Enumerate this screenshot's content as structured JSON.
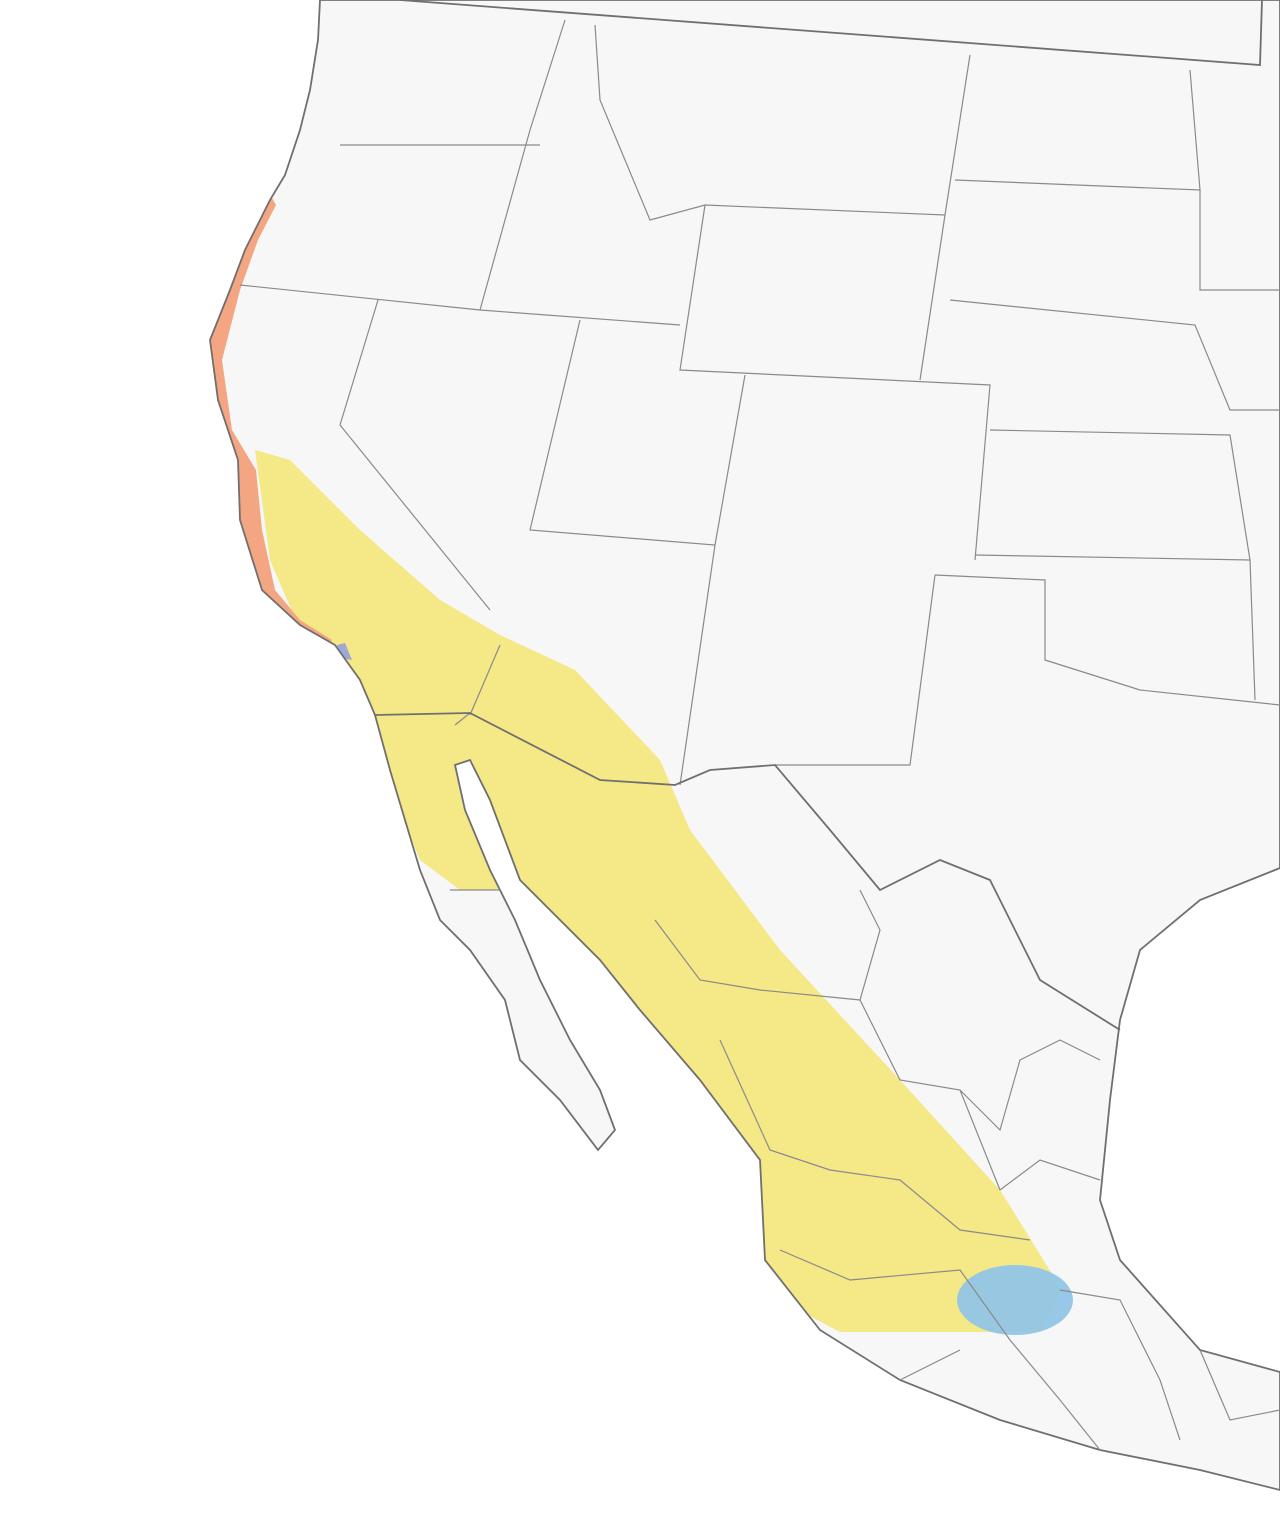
{
  "map": {
    "colors": {
      "ocean": "#ffffff",
      "land": "#f7f7f7",
      "borders": "#8a8a8a",
      "coastline": "#6f6f6f"
    },
    "ranges": [
      {
        "id": "range-yellow",
        "color": "#f5e887"
      },
      {
        "id": "range-salmon",
        "color": "#f4a582"
      },
      {
        "id": "range-blue",
        "color": "#92c5e6"
      },
      {
        "id": "range-purple",
        "color": "#9ea8d8"
      }
    ]
  }
}
